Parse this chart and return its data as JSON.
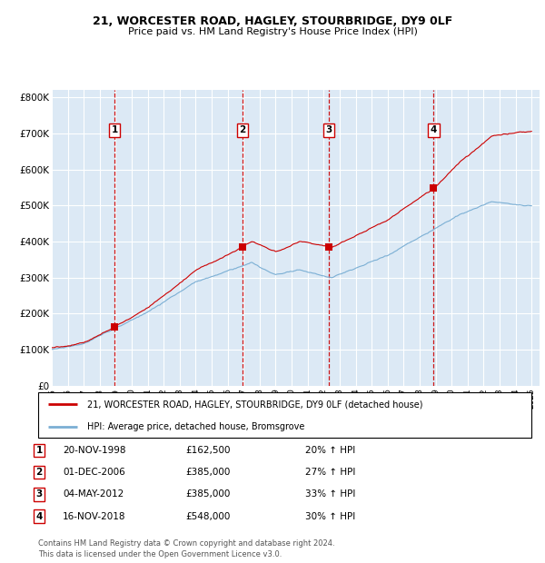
{
  "title": "21, WORCESTER ROAD, HAGLEY, STOURBRIDGE, DY9 0LF",
  "subtitle": "Price paid vs. HM Land Registry's House Price Index (HPI)",
  "ylabel_ticks": [
    "£0",
    "£100K",
    "£200K",
    "£300K",
    "£400K",
    "£500K",
    "£600K",
    "£700K",
    "£800K"
  ],
  "ytick_values": [
    0,
    100000,
    200000,
    300000,
    400000,
    500000,
    600000,
    700000,
    800000
  ],
  "ylim": [
    0,
    820000
  ],
  "xlim_start": 1995.0,
  "xlim_end": 2025.5,
  "bg_color": "#dce9f5",
  "grid_color": "#ffffff",
  "transactions": [
    {
      "num": 1,
      "date": "20-NOV-1998",
      "price": 162500,
      "pct": "20%",
      "year_x": 1998.92
    },
    {
      "num": 2,
      "date": "01-DEC-2006",
      "price": 385000,
      "pct": "27%",
      "year_x": 2006.92
    },
    {
      "num": 3,
      "date": "04-MAY-2012",
      "price": 385000,
      "pct": "33%",
      "year_x": 2012.33
    },
    {
      "num": 4,
      "date": "16-NOV-2018",
      "price": 548000,
      "pct": "30%",
      "year_x": 2018.88
    }
  ],
  "legend_label_red": "21, WORCESTER ROAD, HAGLEY, STOURBRIDGE, DY9 0LF (detached house)",
  "legend_label_blue": "HPI: Average price, detached house, Bromsgrove",
  "footer": "Contains HM Land Registry data © Crown copyright and database right 2024.\nThis data is licensed under the Open Government Licence v3.0.",
  "red_color": "#cc0000",
  "blue_color": "#7bafd4",
  "vline_color": "#cc0000",
  "marker_color": "#cc0000"
}
